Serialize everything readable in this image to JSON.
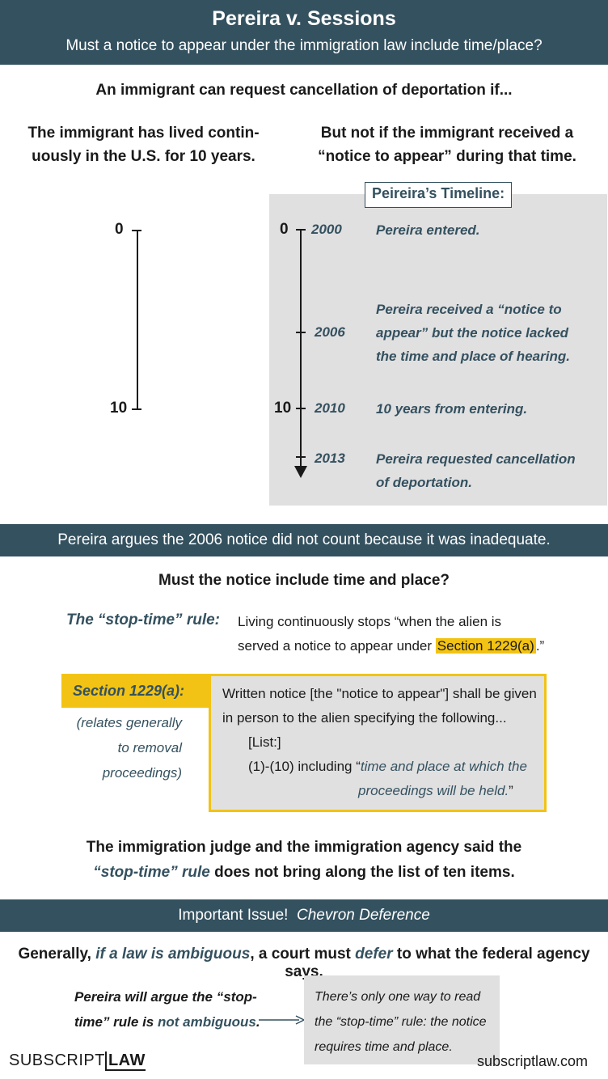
{
  "header": {
    "title": "Pereira v. Sessions",
    "subtitle": "Must a notice to appear under the immigration law include time/place?"
  },
  "intro": {
    "heading": "An immigrant can request cancellation of deportation if...",
    "left_line1": "The immigrant has lived contin-",
    "left_line2": "uously in the U.S. for 10 years.",
    "right_line1": "But not if the immigrant received a",
    "right_line2": "“notice to appear” during that time."
  },
  "simple_timeline": {
    "start_label": "0",
    "end_label": "10"
  },
  "pereira_timeline": {
    "title": "Peireira’s Timeline:",
    "start_label": "0",
    "ten_label": "10",
    "events": [
      {
        "year": "2000",
        "lines": [
          "Pereira entered."
        ]
      },
      {
        "year": "2006",
        "lines": [
          "Pereira received a “notice to",
          "appear” but the notice lacked",
          "the time and place of hearing."
        ]
      },
      {
        "year": "2010",
        "lines": [
          "10 years from entering."
        ]
      },
      {
        "year": "2013",
        "lines": [
          "Pereira requested cancellation",
          "of deportation."
        ]
      }
    ]
  },
  "argument_band": "Pereira argues the 2006 notice did not count because it was inadequate.",
  "question": "Must the notice include time and place?",
  "stop_time": {
    "label": "The “stop-time” rule:",
    "line1": "Living continuously stops “when the alien is",
    "line2_before": "served a notice to appear under ",
    "line2_highlight": "Section 1229(a)",
    "line2_after": ".”"
  },
  "section": {
    "label": "Section 1229(a):",
    "note_lines": [
      "(relates generally",
      "to removal",
      "proceedings)"
    ],
    "text_line1": "Written notice [the \"notice to appear\"] shall be given",
    "text_line2": "in person to the alien specifying the following...",
    "text_line3": "[List:]",
    "text_line4_before": "(1)-(10) including “",
    "text_line4_italic": "time and place at which the",
    "text_line5_italic": "proceedings will be held.",
    "text_line5_after": "”"
  },
  "judge": {
    "line1": "The immigration judge and the immigration agency said the",
    "line2_italic": "“stop-time” rule",
    "line2_after": " does not bring along the list of ten items."
  },
  "issue_band": {
    "label": "Important Issue!",
    "italic": "Chevron Deference"
  },
  "generally": {
    "before": "Generally, ",
    "italic1": "if a law is ambiguous",
    "middle": ", a court must ",
    "italic2": "defer",
    "after": " to what the federal agency says."
  },
  "pereira_argue": {
    "line1": "Pereira will argue the “stop-",
    "line2_before": "time” rule is ",
    "line2_highlight": "not ambiguous",
    "line2_after": "."
  },
  "callout": {
    "lines": [
      "There’s only one way to read",
      "the “stop-time” rule: the notice",
      "requires time and place."
    ]
  },
  "footer": {
    "brand_part1": "SUBSCRIPT",
    "brand_part2": "LAW",
    "url": "subscriptlaw.com"
  },
  "colors": {
    "band": "#34515f",
    "highlight": "#f2c314",
    "panel": "#e1e0e1",
    "text": "#1a1a1a"
  }
}
